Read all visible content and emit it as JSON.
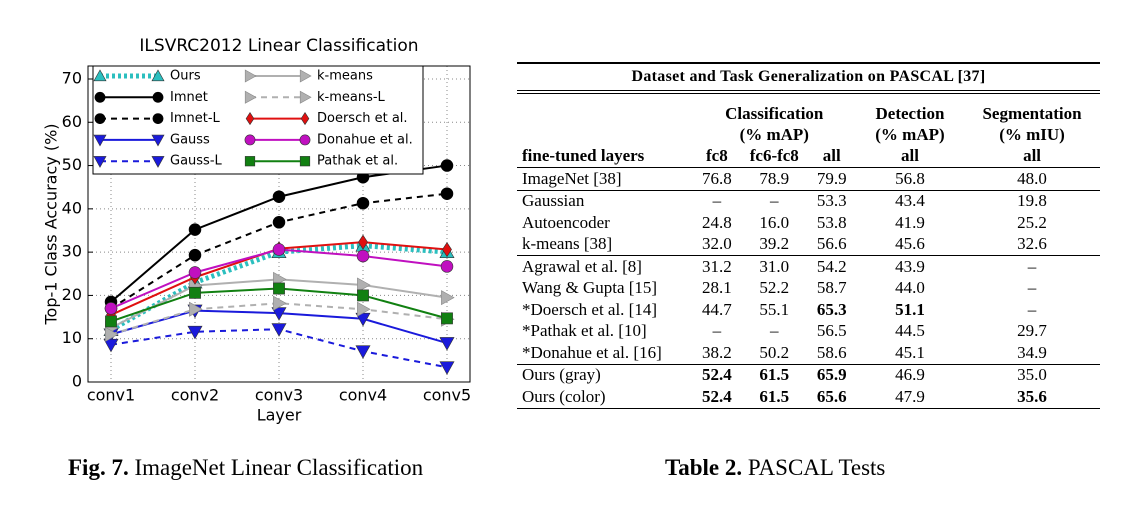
{
  "chart_data": {
    "type": "line",
    "title": "ILSVRC2012 Linear Classification",
    "x_label": "Layer",
    "y_label": "Top-1 Class Accuracy (%)",
    "categories": [
      "conv1",
      "conv2",
      "conv3",
      "conv4",
      "conv5"
    ],
    "ylim": [
      0,
      73
    ],
    "yticks": [
      0,
      10,
      20,
      30,
      40,
      50,
      60,
      70
    ],
    "grid": true,
    "series": [
      {
        "name": "Ours",
        "color": "#2bbfbf",
        "linestyle": "dotted",
        "marker": "triangle-up",
        "values": [
          12,
          23,
          30,
          31.5,
          30
        ]
      },
      {
        "name": "Imnet",
        "color": "#000000",
        "linestyle": "solid",
        "marker": "circle",
        "values": [
          18.5,
          35.2,
          42.8,
          47.3,
          50
        ]
      },
      {
        "name": "Imnet-L",
        "color": "#000000",
        "linestyle": "dashed",
        "marker": "circle",
        "values": [
          17,
          29.3,
          36.9,
          41.3,
          43.5
        ]
      },
      {
        "name": "Gauss",
        "color": "#1a1adb",
        "linestyle": "solid",
        "marker": "triangle-down",
        "values": [
          11,
          16.5,
          15.9,
          14.6,
          9
        ]
      },
      {
        "name": "Gauss-L",
        "color": "#1a1adb",
        "linestyle": "dashed",
        "marker": "triangle-down",
        "values": [
          8.6,
          11.6,
          12.2,
          7.1,
          3.4
        ]
      },
      {
        "name": "k-means",
        "color": "#b0b0b0",
        "linestyle": "solid",
        "marker": "triangle-right",
        "values": [
          12.5,
          22.3,
          23.7,
          22.4,
          19.5
        ]
      },
      {
        "name": "k-means-L",
        "color": "#b0b0b0",
        "linestyle": "dashed",
        "marker": "triangle-right",
        "values": [
          11,
          16.8,
          18.2,
          16.8,
          14.5
        ]
      },
      {
        "name": "Doersch et al.",
        "color": "#e01010",
        "linestyle": "solid",
        "marker": "diamond",
        "values": [
          15.5,
          24.2,
          30.8,
          32.3,
          30.6
        ]
      },
      {
        "name": "Donahue et al.",
        "color": "#c010c0",
        "linestyle": "solid",
        "marker": "circle",
        "values": [
          17,
          25.3,
          30.6,
          29.1,
          26.7
        ]
      },
      {
        "name": "Pathak et al.",
        "color": "#118011",
        "linestyle": "solid",
        "marker": "square",
        "values": [
          14,
          20.6,
          21.6,
          20,
          14.7
        ]
      }
    ]
  },
  "table": {
    "title": "Dataset and Task Generalization on PASCAL [37]",
    "group_headers": [
      "Classification",
      "Detection",
      "Segmentation"
    ],
    "unit_headers": [
      "(% mAP)",
      "(% mAP)",
      "(% mIU)"
    ],
    "column_headers": [
      "fine-tuned layers",
      "fc8",
      "fc6-fc8",
      "all",
      "all",
      "all"
    ],
    "groups": [
      [
        [
          "ImageNet [38]",
          "76.8",
          "78.9",
          "79.9",
          "56.8",
          "48.0"
        ]
      ],
      [
        [
          "Gaussian",
          "–",
          "–",
          "53.3",
          "43.4",
          "19.8"
        ],
        [
          "Autoencoder",
          "24.8",
          "16.0",
          "53.8",
          "41.9",
          "25.2"
        ],
        [
          "k-means [38]",
          "32.0",
          "39.2",
          "56.6",
          "45.6",
          "32.6"
        ]
      ],
      [
        [
          "Agrawal et al. [8]",
          "31.2",
          "31.0",
          "54.2",
          "43.9",
          "–"
        ],
        [
          "Wang & Gupta [15]",
          "28.1",
          "52.2",
          "58.7",
          "44.0",
          "–"
        ],
        [
          "*Doersch et al. [14]",
          "44.7",
          "55.1",
          "65.3",
          "51.1",
          "–"
        ],
        [
          "*Pathak et al. [10]",
          "–",
          "–",
          "56.5",
          "44.5",
          "29.7"
        ],
        [
          "*Donahue et al. [16]",
          "38.2",
          "50.2",
          "58.6",
          "45.1",
          "34.9"
        ]
      ],
      [
        [
          "Ours (gray)",
          "52.4",
          "61.5",
          "65.9",
          "46.9",
          "35.0"
        ],
        [
          "Ours (color)",
          "52.4",
          "61.5",
          "65.6",
          "47.9",
          "35.6"
        ]
      ]
    ],
    "bold": [
      [
        2,
        2,
        3
      ],
      [
        2,
        2,
        4
      ],
      [
        3,
        0,
        1
      ],
      [
        3,
        0,
        2
      ],
      [
        3,
        0,
        3
      ],
      [
        3,
        1,
        1
      ],
      [
        3,
        1,
        2
      ],
      [
        3,
        1,
        3
      ],
      [
        3,
        1,
        5
      ]
    ]
  },
  "captions": {
    "figure": {
      "label": "Fig. 7.",
      "text": "ImageNet Linear Classification"
    },
    "table": {
      "label": "Table 2.",
      "text": "PASCAL Tests"
    }
  }
}
